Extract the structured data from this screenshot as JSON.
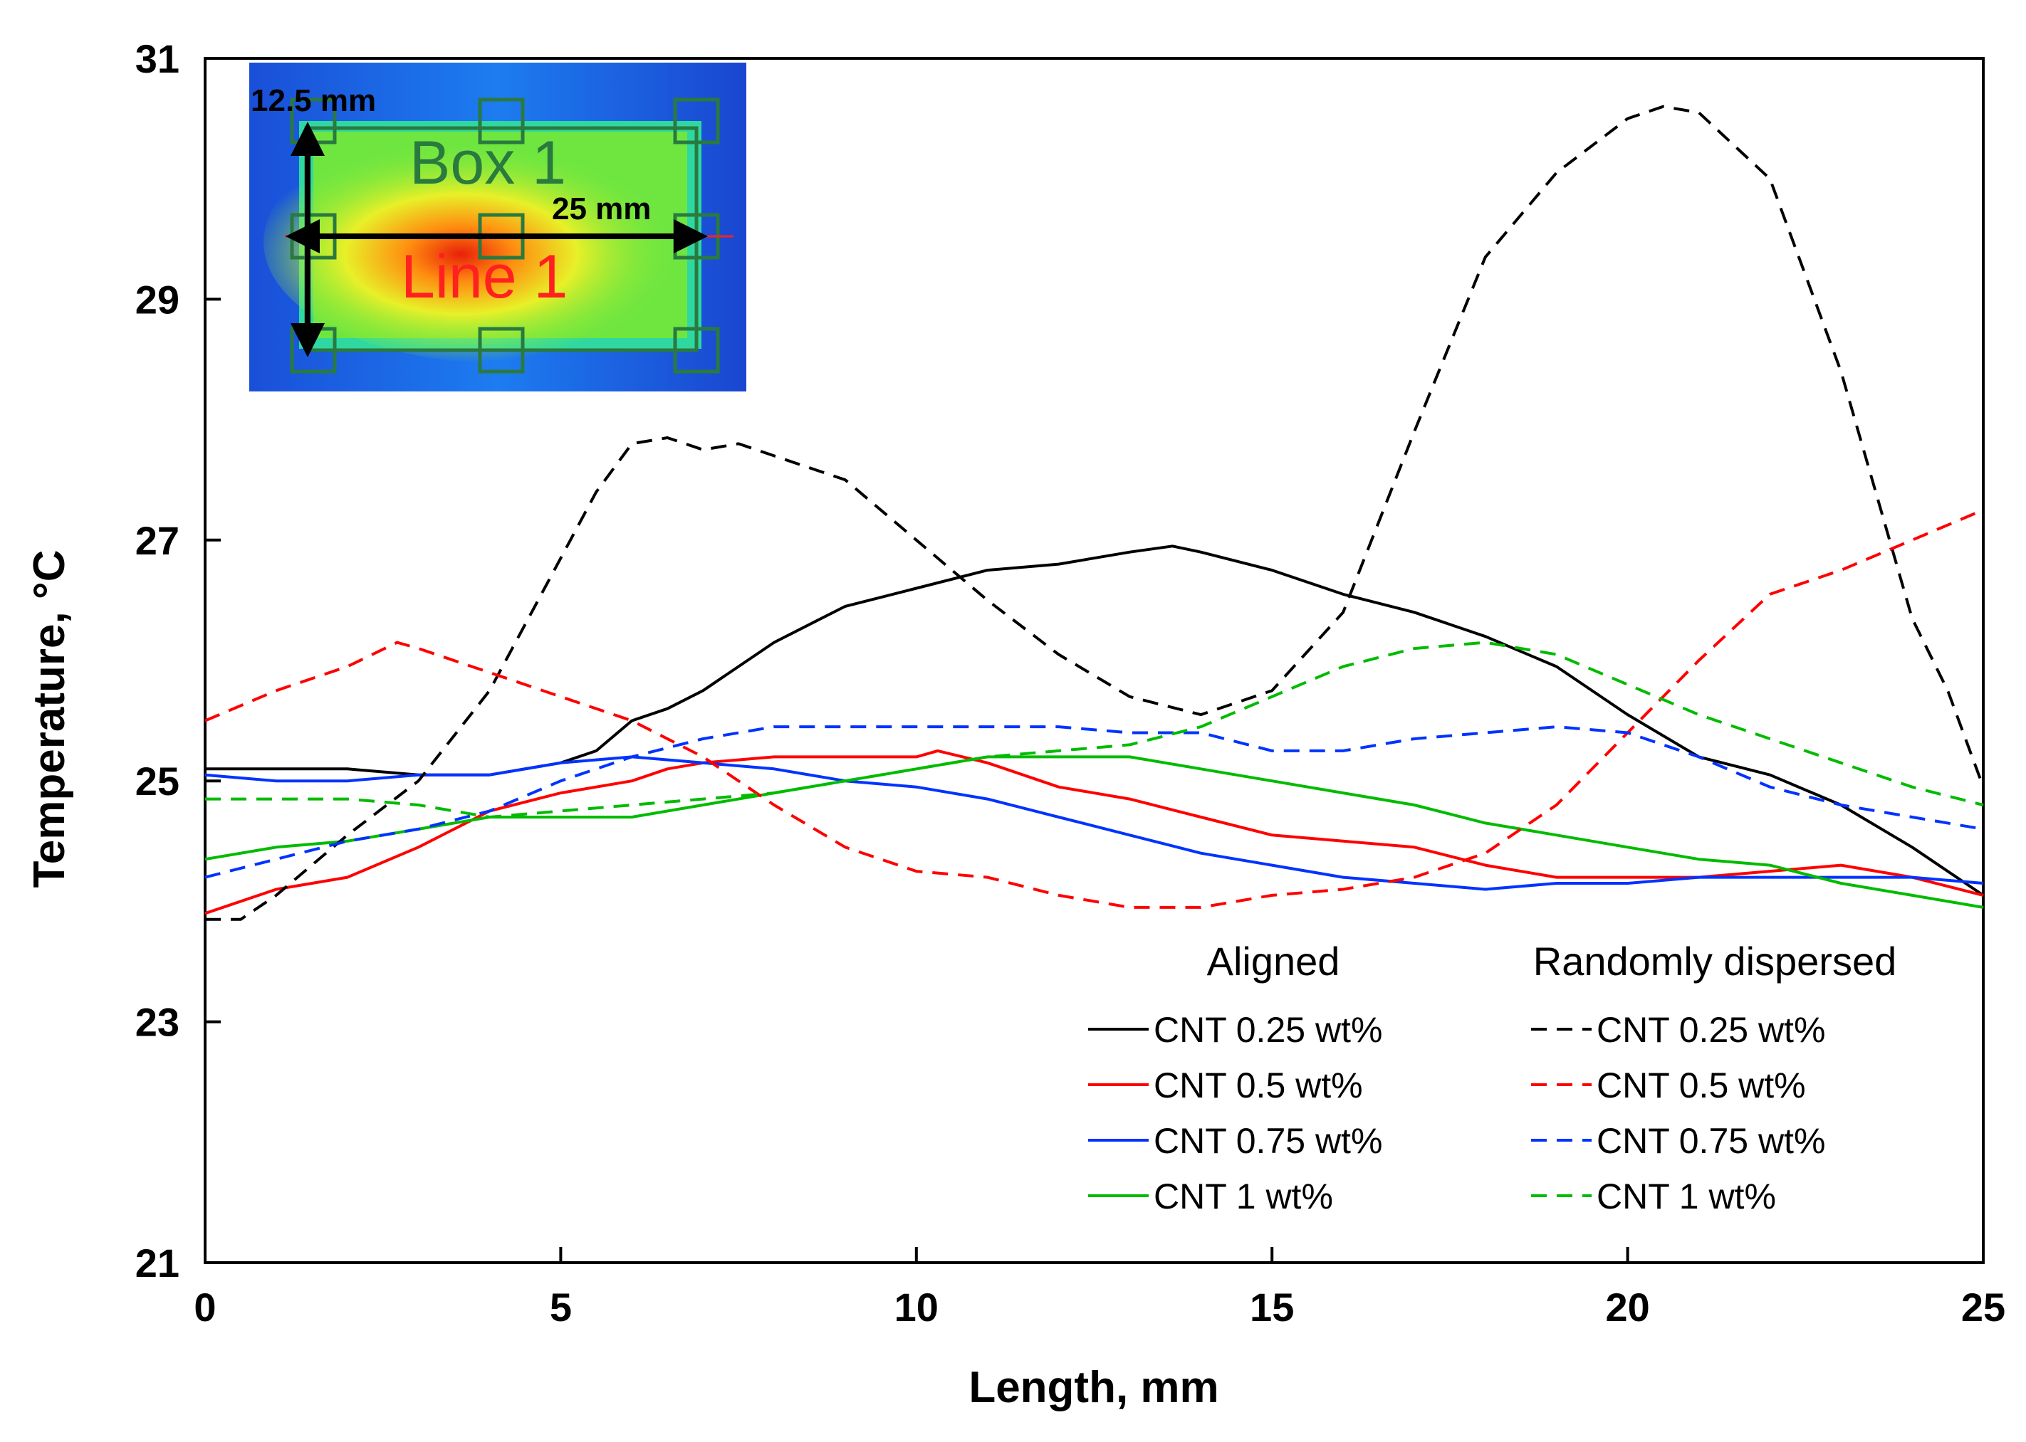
{
  "chart_data": {
    "type": "line",
    "title": "",
    "xlabel": "Length, mm",
    "ylabel": "Temperature, °C",
    "xlim": [
      0,
      25
    ],
    "ylim": [
      21,
      31
    ],
    "xticks": [
      0,
      5,
      10,
      15,
      20,
      25
    ],
    "yticks": [
      21,
      23,
      25,
      27,
      29,
      31
    ],
    "grid": false,
    "legend": {
      "placement": "bottom-right",
      "group_headers": [
        "Aligned",
        "Randomly dispersed"
      ]
    },
    "series": [
      {
        "name": "CNT 0.25 wt%",
        "group": "Aligned",
        "style": "solid",
        "color": "#000000",
        "x": [
          0,
          1,
          2,
          3,
          4,
          5,
          5.5,
          6,
          6.5,
          7,
          8,
          9,
          10,
          11,
          12,
          13,
          13.6,
          14,
          15,
          16,
          17,
          18,
          19,
          20,
          21,
          22,
          23,
          24,
          25
        ],
        "y": [
          25.1,
          25.1,
          25.1,
          25.05,
          25.05,
          25.15,
          25.25,
          25.5,
          25.6,
          25.75,
          26.15,
          26.45,
          26.6,
          26.75,
          26.8,
          26.9,
          26.95,
          26.9,
          26.75,
          26.55,
          26.4,
          26.2,
          25.95,
          25.55,
          25.2,
          25.05,
          24.8,
          24.45,
          24.05
        ]
      },
      {
        "name": "CNT 0.5 wt%",
        "group": "Aligned",
        "style": "solid",
        "color": "#ff0000",
        "x": [
          0,
          1,
          2,
          3,
          4,
          5,
          6,
          6.5,
          7,
          8,
          9,
          10,
          10.3,
          11,
          12,
          13,
          14,
          15,
          16,
          17,
          18,
          19,
          20,
          21,
          22,
          23,
          24,
          25
        ],
        "y": [
          23.9,
          24.1,
          24.2,
          24.45,
          24.75,
          24.9,
          25.0,
          25.1,
          25.15,
          25.2,
          25.2,
          25.2,
          25.25,
          25.15,
          24.95,
          24.85,
          24.7,
          24.55,
          24.5,
          24.45,
          24.3,
          24.2,
          24.2,
          24.2,
          24.25,
          24.3,
          24.2,
          24.05
        ]
      },
      {
        "name": "CNT 0.75 wt%",
        "group": "Aligned",
        "style": "solid",
        "color": "#0033ff",
        "x": [
          0,
          1,
          2,
          3,
          4,
          5,
          6,
          7,
          8,
          9,
          10,
          11,
          12,
          13,
          14,
          15,
          16,
          17,
          18,
          19,
          20,
          21,
          22,
          23,
          24,
          25
        ],
        "y": [
          25.05,
          25.0,
          25.0,
          25.05,
          25.05,
          25.15,
          25.2,
          25.15,
          25.1,
          25.0,
          24.95,
          24.85,
          24.7,
          24.55,
          24.4,
          24.3,
          24.2,
          24.15,
          24.1,
          24.15,
          24.15,
          24.2,
          24.2,
          24.2,
          24.2,
          24.15
        ]
      },
      {
        "name": "CNT 1 wt%",
        "group": "Aligned",
        "style": "solid",
        "color": "#00bb00",
        "x": [
          0,
          1,
          2,
          3,
          4,
          5,
          6,
          7,
          8,
          9,
          10,
          11,
          12,
          13,
          14,
          15,
          16,
          17,
          18,
          19,
          20,
          21,
          22,
          23,
          24,
          25
        ],
        "y": [
          24.35,
          24.45,
          24.5,
          24.6,
          24.7,
          24.7,
          24.7,
          24.8,
          24.9,
          25.0,
          25.1,
          25.2,
          25.2,
          25.2,
          25.1,
          25.0,
          24.9,
          24.8,
          24.65,
          24.55,
          24.45,
          24.35,
          24.3,
          24.15,
          24.05,
          23.95
        ]
      },
      {
        "name": "CNT 0.25 wt%",
        "group": "Randomly dispersed",
        "style": "dashed",
        "color": "#000000",
        "x": [
          0,
          0.5,
          1,
          2,
          3,
          4,
          5,
          5.5,
          6,
          6.5,
          7,
          7.5,
          8,
          9,
          10,
          11,
          12,
          13,
          14,
          15,
          16,
          17,
          18,
          19,
          20,
          20.5,
          21,
          22,
          23,
          24,
          24.5,
          25
        ],
        "y": [
          23.85,
          23.85,
          24.05,
          24.55,
          25.0,
          25.75,
          26.85,
          27.4,
          27.8,
          27.85,
          27.75,
          27.8,
          27.7,
          27.5,
          27.0,
          26.5,
          26.05,
          25.7,
          25.55,
          25.75,
          26.4,
          27.9,
          29.35,
          30.05,
          30.5,
          30.6,
          30.55,
          30.0,
          28.4,
          26.35,
          25.75,
          24.95
        ]
      },
      {
        "name": "CNT 0.5 wt%",
        "group": "Randomly dispersed",
        "style": "dashed",
        "color": "#ff0000",
        "x": [
          0,
          1,
          2,
          2.7,
          3,
          4,
          5,
          6,
          7,
          8,
          9,
          10,
          11,
          12,
          13,
          14,
          15,
          16,
          17,
          18,
          19,
          20,
          21,
          22,
          23,
          24,
          25
        ],
        "y": [
          25.5,
          25.75,
          25.95,
          26.15,
          26.1,
          25.9,
          25.7,
          25.5,
          25.2,
          24.8,
          24.45,
          24.25,
          24.2,
          24.05,
          23.95,
          23.95,
          24.05,
          24.1,
          24.2,
          24.4,
          24.8,
          25.4,
          26.0,
          26.55,
          26.75,
          27.0,
          27.25
        ]
      },
      {
        "name": "CNT 0.75 wt%",
        "group": "Randomly dispersed",
        "style": "dashed",
        "color": "#0033ff",
        "x": [
          0,
          1,
          2,
          3,
          4,
          5,
          6,
          7,
          8,
          9,
          10,
          11,
          12,
          13,
          14,
          15,
          16,
          17,
          18,
          19,
          20,
          21,
          22,
          23,
          24,
          25
        ],
        "y": [
          24.2,
          24.35,
          24.5,
          24.6,
          24.75,
          25.0,
          25.2,
          25.35,
          25.45,
          25.45,
          25.45,
          25.45,
          25.45,
          25.4,
          25.4,
          25.25,
          25.25,
          25.35,
          25.4,
          25.45,
          25.4,
          25.2,
          24.95,
          24.8,
          24.7,
          24.6
        ]
      },
      {
        "name": "CNT 1 wt%",
        "group": "Randomly dispersed",
        "style": "dashed",
        "color": "#00bb00",
        "x": [
          0,
          1,
          2,
          3,
          4,
          5,
          6,
          7,
          8,
          9,
          10,
          11,
          12,
          13,
          14,
          15,
          16,
          17,
          18,
          19,
          20,
          21,
          22,
          23,
          24,
          25
        ],
        "y": [
          24.85,
          24.85,
          24.85,
          24.8,
          24.7,
          24.75,
          24.8,
          24.85,
          24.9,
          25.0,
          25.1,
          25.2,
          25.25,
          25.3,
          25.45,
          25.7,
          25.95,
          26.1,
          26.15,
          26.05,
          25.8,
          25.55,
          25.35,
          25.15,
          24.95,
          24.8
        ]
      }
    ]
  },
  "inset": {
    "label_height": "12.5 mm",
    "label_length": "25 mm",
    "label_box": "Box 1",
    "label_line": "Line 1"
  }
}
